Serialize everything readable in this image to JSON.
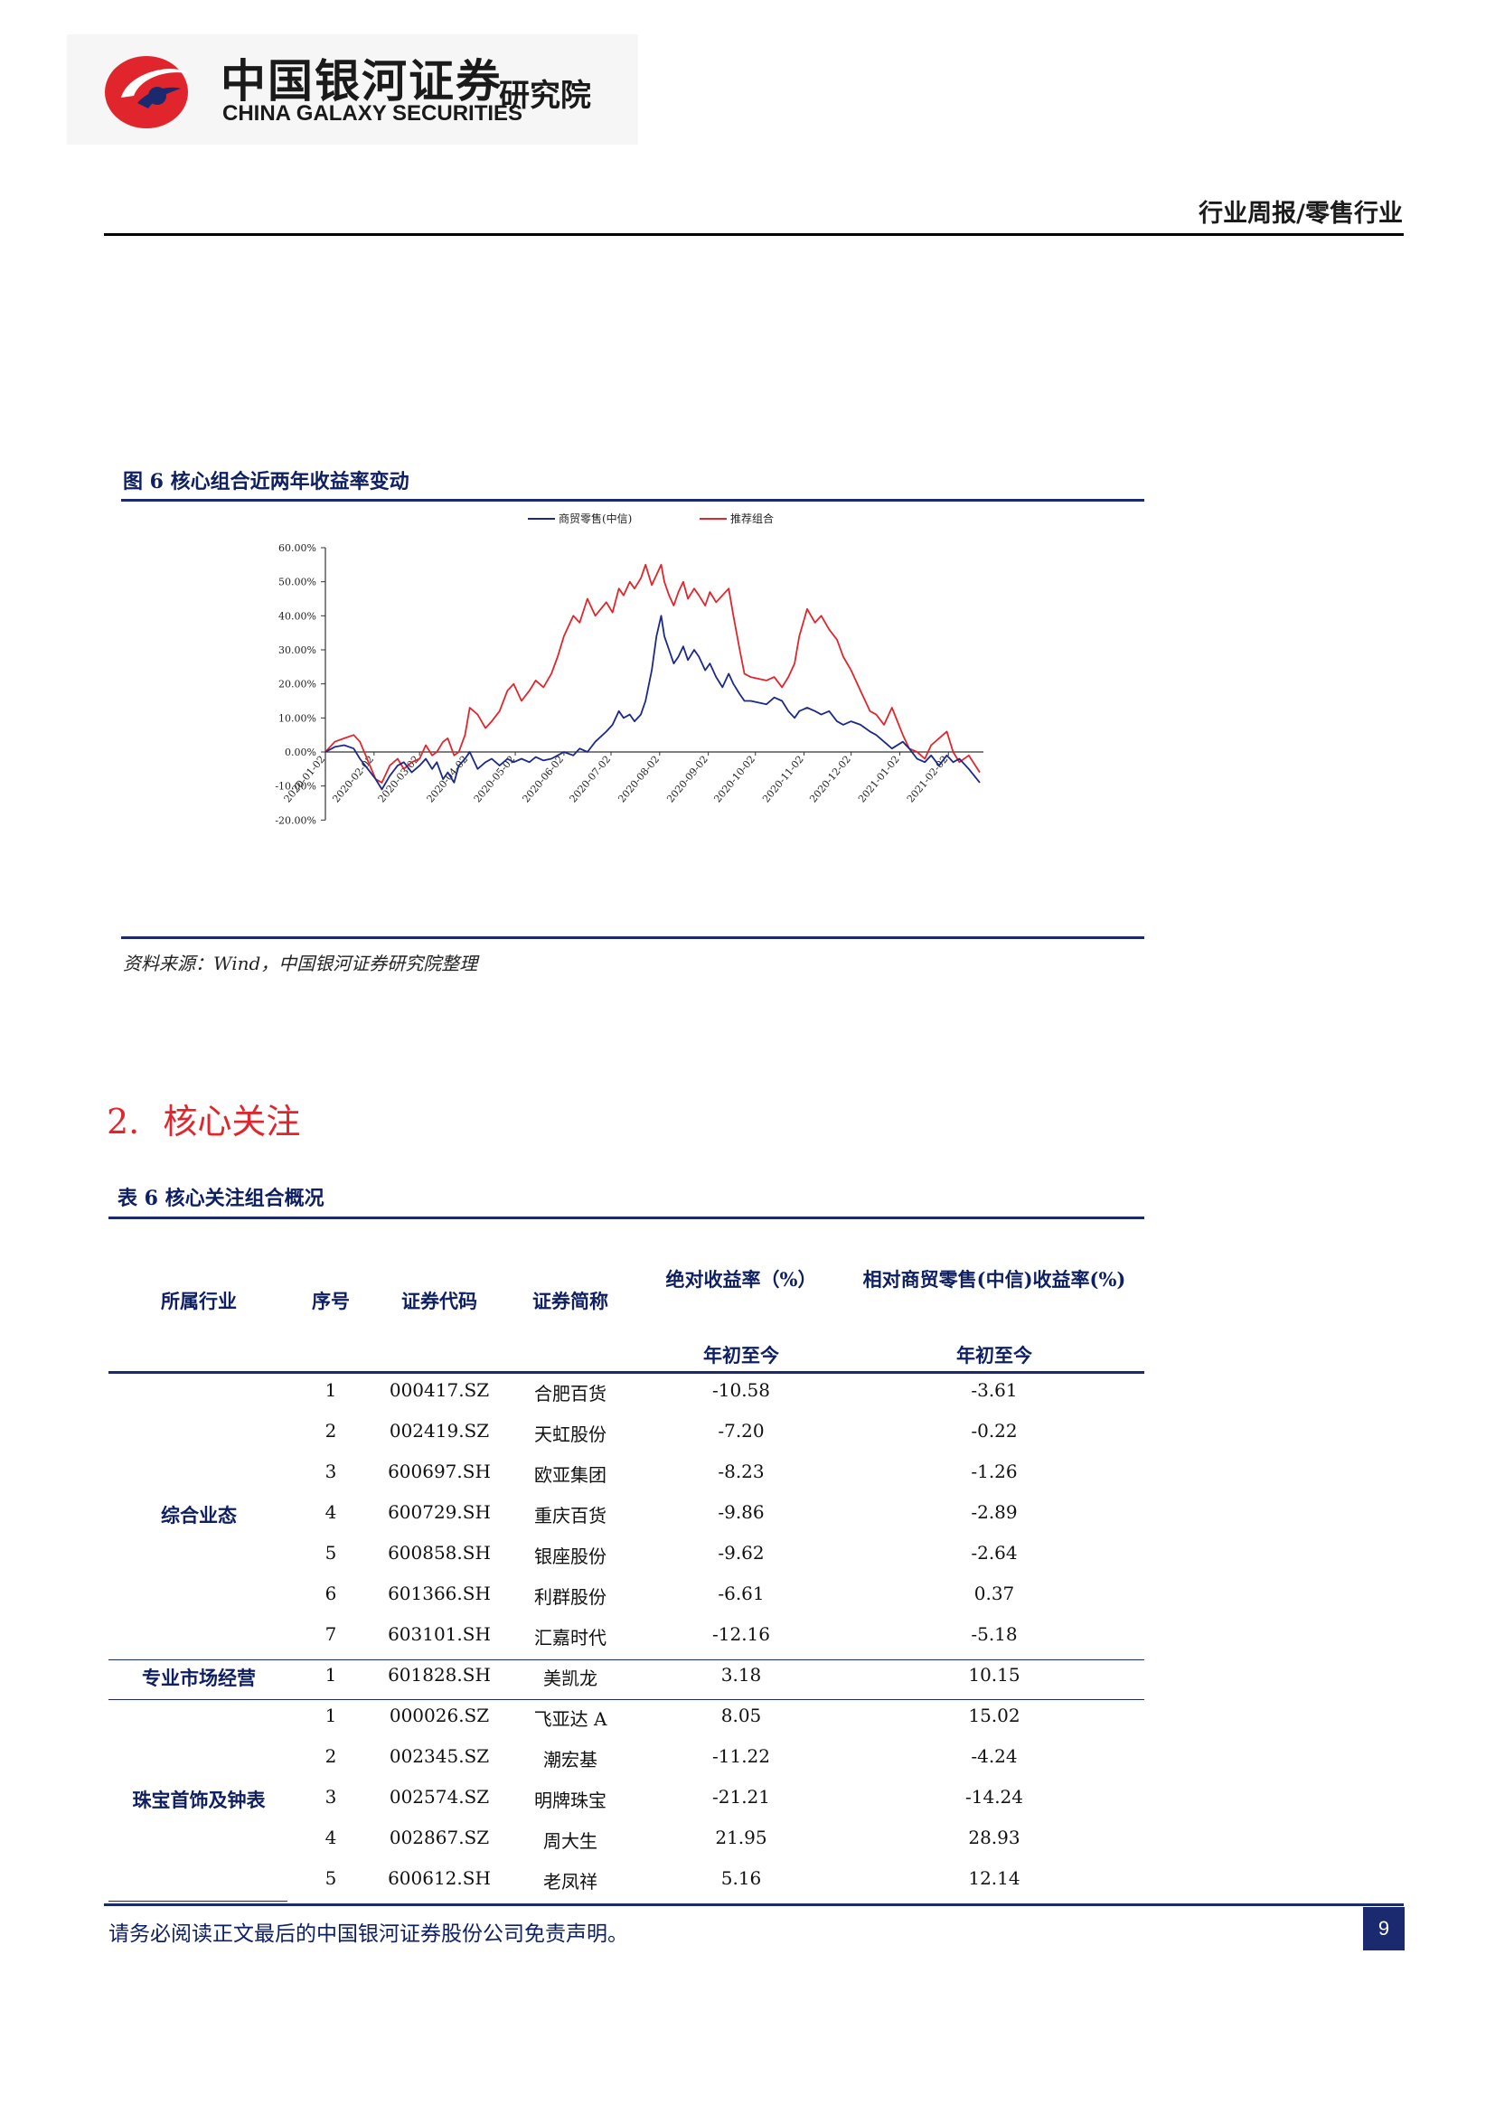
{
  "header": {
    "logo_cn": "中国银河证券",
    "logo_en": "CHINA GALAXY SECURITIES",
    "logo_institute": "研究院",
    "report_type": "行业周报/零售行业",
    "brand_red": "#e0262c",
    "brand_navy": "#1b2a6e"
  },
  "figure": {
    "title": "图 6 核心组合近两年收益率变动",
    "source": "资料来源：Wind，中国银河证券研究院整理"
  },
  "chart_data": {
    "type": "line",
    "x_ticks": [
      "2020-01-02",
      "2020-02-02",
      "2020-03-02",
      "2020-04-02",
      "2020-05-02",
      "2020-06-02",
      "2020-07-02",
      "2020-08-02",
      "2020-09-02",
      "2020-10-02",
      "2020-11-02",
      "2020-12-02",
      "2021-01-02",
      "2021-02-02"
    ],
    "y_ticks": [
      "60.00%",
      "50.00%",
      "40.00%",
      "30.00%",
      "20.00%",
      "10.00%",
      "0.00%",
      "-10.00%",
      "-20.00%"
    ],
    "ylim": [
      -20,
      60
    ],
    "xlim": [
      "2020-01-02",
      "2021-02-22"
    ],
    "grid": false,
    "legend_position": "top",
    "series": [
      {
        "name": "商贸零售(中信)",
        "color": "#1b2a8a",
        "points": [
          [
            "2020-01-02",
            0
          ],
          [
            "2020-01-08",
            1.5
          ],
          [
            "2020-01-14",
            2
          ],
          [
            "2020-01-20",
            1
          ],
          [
            "2020-01-24",
            -2
          ],
          [
            "2020-02-03",
            -8
          ],
          [
            "2020-02-07",
            -11
          ],
          [
            "2020-02-12",
            -7
          ],
          [
            "2020-02-17",
            -4
          ],
          [
            "2020-02-21",
            -3
          ],
          [
            "2020-02-26",
            -6
          ],
          [
            "2020-03-02",
            -4
          ],
          [
            "2020-03-06",
            -2
          ],
          [
            "2020-03-10",
            -5
          ],
          [
            "2020-03-13",
            -3
          ],
          [
            "2020-03-17",
            -8
          ],
          [
            "2020-03-20",
            -6
          ],
          [
            "2020-03-24",
            -9
          ],
          [
            "2020-03-27",
            -4
          ],
          [
            "2020-03-31",
            -2
          ],
          [
            "2020-04-03",
            0
          ],
          [
            "2020-04-08",
            -5
          ],
          [
            "2020-04-13",
            -3
          ],
          [
            "2020-04-17",
            -2
          ],
          [
            "2020-04-22",
            -4
          ],
          [
            "2020-04-27",
            -2
          ],
          [
            "2020-05-01",
            -3
          ],
          [
            "2020-05-06",
            -2
          ],
          [
            "2020-05-11",
            -3
          ],
          [
            "2020-05-15",
            -1.5
          ],
          [
            "2020-05-20",
            -2.5
          ],
          [
            "2020-05-25",
            -2
          ],
          [
            "2020-05-29",
            -1
          ],
          [
            "2020-06-02",
            0
          ],
          [
            "2020-06-08",
            -1
          ],
          [
            "2020-06-12",
            1
          ],
          [
            "2020-06-17",
            0
          ],
          [
            "2020-06-22",
            3
          ],
          [
            "2020-06-29",
            6
          ],
          [
            "2020-07-03",
            8
          ],
          [
            "2020-07-07",
            12
          ],
          [
            "2020-07-10",
            10
          ],
          [
            "2020-07-14",
            11
          ],
          [
            "2020-07-17",
            9
          ],
          [
            "2020-07-21",
            11
          ],
          [
            "2020-07-24",
            15
          ],
          [
            "2020-07-28",
            24
          ],
          [
            "2020-07-31",
            34
          ],
          [
            "2020-08-03",
            40
          ],
          [
            "2020-08-05",
            34
          ],
          [
            "2020-08-08",
            30
          ],
          [
            "2020-08-11",
            26
          ],
          [
            "2020-08-14",
            28
          ],
          [
            "2020-08-17",
            31
          ],
          [
            "2020-08-20",
            27
          ],
          [
            "2020-08-24",
            30
          ],
          [
            "2020-08-27",
            28
          ],
          [
            "2020-08-31",
            24
          ],
          [
            "2020-09-03",
            26
          ],
          [
            "2020-09-07",
            22
          ],
          [
            "2020-09-11",
            19
          ],
          [
            "2020-09-15",
            23
          ],
          [
            "2020-09-18",
            20
          ],
          [
            "2020-09-22",
            17
          ],
          [
            "2020-09-25",
            15
          ],
          [
            "2020-09-29",
            15
          ],
          [
            "2020-10-09",
            14
          ],
          [
            "2020-10-14",
            16
          ],
          [
            "2020-10-19",
            15
          ],
          [
            "2020-10-23",
            12
          ],
          [
            "2020-10-27",
            10
          ],
          [
            "2020-10-30",
            12
          ],
          [
            "2020-11-04",
            13
          ],
          [
            "2020-11-09",
            12
          ],
          [
            "2020-11-13",
            11
          ],
          [
            "2020-11-18",
            12
          ],
          [
            "2020-11-23",
            9
          ],
          [
            "2020-11-27",
            8
          ],
          [
            "2020-12-02",
            9
          ],
          [
            "2020-12-08",
            8
          ],
          [
            "2020-12-14",
            6
          ],
          [
            "2020-12-18",
            5
          ],
          [
            "2020-12-23",
            3
          ],
          [
            "2020-12-28",
            1
          ],
          [
            "2021-01-04",
            3
          ],
          [
            "2021-01-08",
            1
          ],
          [
            "2021-01-13",
            -2
          ],
          [
            "2021-01-18",
            -3
          ],
          [
            "2021-01-22",
            -1
          ],
          [
            "2021-01-27",
            -4
          ],
          [
            "2021-02-01",
            -1
          ],
          [
            "2021-02-05",
            -3
          ],
          [
            "2021-02-09",
            -2
          ],
          [
            "2021-02-15",
            -5
          ],
          [
            "2021-02-22",
            -9
          ]
        ]
      },
      {
        "name": "推荐组合",
        "color": "#e0262c",
        "points": [
          [
            "2020-01-02",
            0
          ],
          [
            "2020-01-08",
            3
          ],
          [
            "2020-01-14",
            4
          ],
          [
            "2020-01-20",
            5
          ],
          [
            "2020-01-24",
            3
          ],
          [
            "2020-02-03",
            -8
          ],
          [
            "2020-02-07",
            -9
          ],
          [
            "2020-02-12",
            -4
          ],
          [
            "2020-02-17",
            -2
          ],
          [
            "2020-02-21",
            -5
          ],
          [
            "2020-02-26",
            -3
          ],
          [
            "2020-03-02",
            -2
          ],
          [
            "2020-03-06",
            2
          ],
          [
            "2020-03-10",
            -1
          ],
          [
            "2020-03-13",
            0
          ],
          [
            "2020-03-17",
            3
          ],
          [
            "2020-03-20",
            4
          ],
          [
            "2020-03-24",
            -1
          ],
          [
            "2020-03-27",
            0
          ],
          [
            "2020-03-31",
            5
          ],
          [
            "2020-04-03",
            13
          ],
          [
            "2020-04-08",
            11
          ],
          [
            "2020-04-13",
            7
          ],
          [
            "2020-04-17",
            9
          ],
          [
            "2020-04-22",
            12
          ],
          [
            "2020-04-27",
            18
          ],
          [
            "2020-05-01",
            20
          ],
          [
            "2020-05-06",
            15
          ],
          [
            "2020-05-11",
            18
          ],
          [
            "2020-05-15",
            21
          ],
          [
            "2020-05-20",
            19
          ],
          [
            "2020-05-25",
            23
          ],
          [
            "2020-05-29",
            28
          ],
          [
            "2020-06-02",
            34
          ],
          [
            "2020-06-08",
            40
          ],
          [
            "2020-06-12",
            38
          ],
          [
            "2020-06-17",
            45
          ],
          [
            "2020-06-22",
            40
          ],
          [
            "2020-06-29",
            44
          ],
          [
            "2020-07-03",
            41
          ],
          [
            "2020-07-07",
            48
          ],
          [
            "2020-07-10",
            46
          ],
          [
            "2020-07-14",
            50
          ],
          [
            "2020-07-17",
            48
          ],
          [
            "2020-07-21",
            51
          ],
          [
            "2020-07-24",
            55
          ],
          [
            "2020-07-28",
            49
          ],
          [
            "2020-07-31",
            52
          ],
          [
            "2020-08-03",
            55
          ],
          [
            "2020-08-05",
            50
          ],
          [
            "2020-08-08",
            46
          ],
          [
            "2020-08-11",
            43
          ],
          [
            "2020-08-14",
            47
          ],
          [
            "2020-08-17",
            50
          ],
          [
            "2020-08-20",
            45
          ],
          [
            "2020-08-24",
            48
          ],
          [
            "2020-08-27",
            46
          ],
          [
            "2020-08-31",
            43
          ],
          [
            "2020-09-03",
            47
          ],
          [
            "2020-09-07",
            44
          ],
          [
            "2020-09-11",
            46
          ],
          [
            "2020-09-15",
            48
          ],
          [
            "2020-09-18",
            40
          ],
          [
            "2020-09-22",
            30
          ],
          [
            "2020-09-25",
            23
          ],
          [
            "2020-09-29",
            22
          ],
          [
            "2020-10-09",
            21
          ],
          [
            "2020-10-14",
            22
          ],
          [
            "2020-10-19",
            19
          ],
          [
            "2020-10-23",
            22
          ],
          [
            "2020-10-27",
            26
          ],
          [
            "2020-10-30",
            34
          ],
          [
            "2020-11-04",
            42
          ],
          [
            "2020-11-09",
            38
          ],
          [
            "2020-11-13",
            40
          ],
          [
            "2020-11-18",
            36
          ],
          [
            "2020-11-23",
            33
          ],
          [
            "2020-11-27",
            28
          ],
          [
            "2020-12-02",
            24
          ],
          [
            "2020-12-08",
            18
          ],
          [
            "2020-12-14",
            12
          ],
          [
            "2020-12-18",
            11
          ],
          [
            "2020-12-23",
            8
          ],
          [
            "2020-12-28",
            13
          ],
          [
            "2021-01-04",
            5
          ],
          [
            "2021-01-08",
            1
          ],
          [
            "2021-01-13",
            0
          ],
          [
            "2021-01-18",
            -2
          ],
          [
            "2021-01-22",
            2
          ],
          [
            "2021-01-27",
            4
          ],
          [
            "2021-02-01",
            6
          ],
          [
            "2021-02-05",
            0
          ],
          [
            "2021-02-09",
            -3
          ],
          [
            "2021-02-15",
            -1
          ],
          [
            "2021-02-22",
            -6
          ]
        ]
      }
    ]
  },
  "section": {
    "number": "2.",
    "title": "核心关注"
  },
  "table": {
    "title": "表 6 核心关注组合概况",
    "headers": {
      "industry": "所属行业",
      "seq": "序号",
      "code": "证券代码",
      "name": "证券简称",
      "abs_return": "绝对收益率（%）",
      "rel_return": "相对商贸零售(中信)收益率(%)",
      "ytd": "年初至今",
      "ytd2": "年初至今"
    },
    "groups": [
      {
        "industry": "综合业态",
        "rows": [
          {
            "seq": "1",
            "code": "000417.SZ",
            "name": "合肥百货",
            "abs": "-10.58",
            "rel": "-3.61"
          },
          {
            "seq": "2",
            "code": "002419.SZ",
            "name": "天虹股份",
            "abs": "-7.20",
            "rel": "-0.22"
          },
          {
            "seq": "3",
            "code": "600697.SH",
            "name": "欧亚集团",
            "abs": "-8.23",
            "rel": "-1.26"
          },
          {
            "seq": "4",
            "code": "600729.SH",
            "name": "重庆百货",
            "abs": "-9.86",
            "rel": "-2.89"
          },
          {
            "seq": "5",
            "code": "600858.SH",
            "name": "银座股份",
            "abs": "-9.62",
            "rel": "-2.64"
          },
          {
            "seq": "6",
            "code": "601366.SH",
            "name": "利群股份",
            "abs": "-6.61",
            "rel": "0.37"
          },
          {
            "seq": "7",
            "code": "603101.SH",
            "name": "汇嘉时代",
            "abs": "-12.16",
            "rel": "-5.18"
          }
        ]
      },
      {
        "industry": "专业市场经营",
        "rows": [
          {
            "seq": "1",
            "code": "601828.SH",
            "name": "美凯龙",
            "abs": "3.18",
            "rel": "10.15"
          }
        ]
      },
      {
        "industry": "珠宝首饰及钟表",
        "rows": [
          {
            "seq": "1",
            "code": "000026.SZ",
            "name": "飞亚达 A",
            "abs": "8.05",
            "rel": "15.02"
          },
          {
            "seq": "2",
            "code": "002345.SZ",
            "name": "潮宏基",
            "abs": "-11.22",
            "rel": "-4.24"
          },
          {
            "seq": "3",
            "code": "002574.SZ",
            "name": "明牌珠宝",
            "abs": "-21.21",
            "rel": "-14.24"
          },
          {
            "seq": "4",
            "code": "002867.SZ",
            "name": "周大生",
            "abs": "21.95",
            "rel": "28.93"
          },
          {
            "seq": "5",
            "code": "600612.SH",
            "name": "老凤祥",
            "abs": "5.16",
            "rel": "12.14"
          }
        ]
      }
    ]
  },
  "footer": {
    "disclaimer": "请务必阅读正文最后的中国银河证券股份公司免责声明。",
    "page_number": "9"
  }
}
